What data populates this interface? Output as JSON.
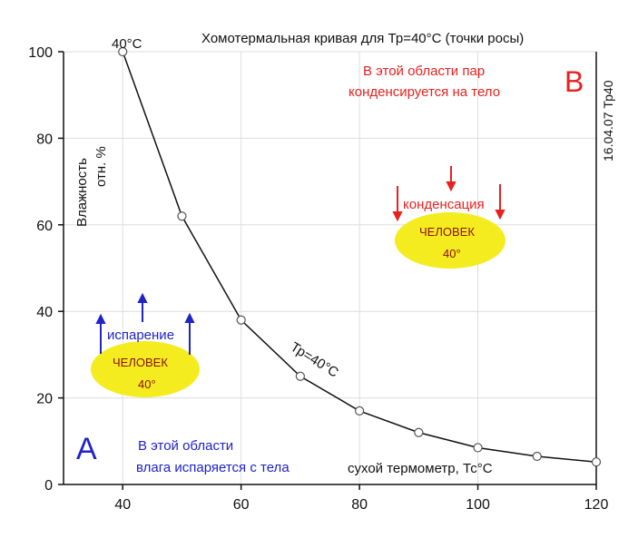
{
  "chart_data": {
    "type": "line",
    "title": "Хомотермальная кривая для Тр=40°С (точки росы)",
    "xlabel": "сухой термометр, Тс°С",
    "ylabel_line1": "Влажность",
    "ylabel_line2": "отн. %",
    "xlim": [
      30,
      120
    ],
    "ylim": [
      0,
      100
    ],
    "xticks": [
      40,
      60,
      80,
      100,
      120
    ],
    "yticks": [
      0,
      20,
      40,
      60,
      80,
      100
    ],
    "grid": true,
    "series": [
      {
        "name": "Тр=40°С",
        "x": [
          40,
          50,
          60,
          70,
          80,
          90,
          100,
          110,
          120
        ],
        "y": [
          100,
          62,
          38,
          25,
          17,
          12,
          8.5,
          6.5,
          5.2
        ]
      }
    ],
    "top_point_label": "40°C",
    "side_label": "16.04.07 Тр40",
    "region_b": {
      "letter": "B",
      "line1": "В этой области пар",
      "line2": "конденсируется на тело",
      "process": "конденсация",
      "person": "ЧЕЛОВЕК",
      "temp": "40°"
    },
    "region_a": {
      "letter": "A",
      "line1": "В этой области",
      "line2": "влага испаряется с тела",
      "process": "испарение",
      "person": "ЧЕЛОВЕК",
      "temp": "40°"
    },
    "colors": {
      "axis": "#111111",
      "grid": "#dedede",
      "curve": "#111111",
      "region_b": "#e8211f",
      "region_a": "#1f23c8",
      "ellipse": "#f5ec1f",
      "person_text": "#8a1010"
    }
  }
}
